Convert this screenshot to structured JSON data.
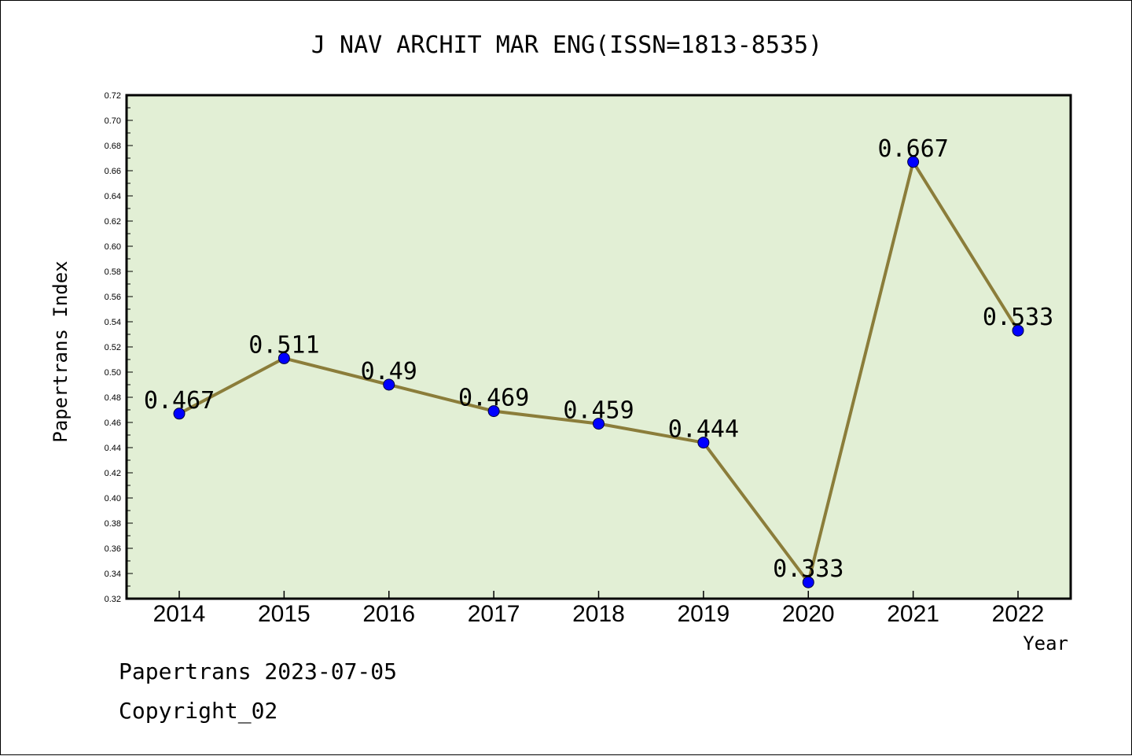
{
  "footer": {
    "line1": "Papertrans 2023-07-05",
    "line2": "Copyright_02"
  },
  "colors": {
    "plot_background": "#e2efd5",
    "line": "#8b7d3a",
    "marker": "#0000ff"
  },
  "chart_data": {
    "type": "line",
    "title": "J NAV ARCHIT MAR ENG(ISSN=1813-8535)",
    "xlabel": "Year",
    "ylabel": "Papertrans Index",
    "categories": [
      "2014",
      "2015",
      "2016",
      "2017",
      "2018",
      "2019",
      "2020",
      "2021",
      "2022"
    ],
    "series": [
      {
        "values": [
          0.467,
          0.511,
          0.49,
          0.469,
          0.459,
          0.444,
          0.333,
          0.667,
          0.533
        ],
        "labels": [
          "0.467",
          "0.511",
          "0.49",
          "0.469",
          "0.459",
          "0.444",
          "0.333",
          "0.667",
          "0.533"
        ]
      }
    ],
    "ylim": [
      0.32,
      0.72
    ],
    "yticks": [
      "0.32",
      "0.34",
      "0.36",
      "0.38",
      "0.40",
      "0.42",
      "0.44",
      "0.46",
      "0.48",
      "0.50",
      "0.52",
      "0.54",
      "0.56",
      "0.58",
      "0.60",
      "0.62",
      "0.64",
      "0.66",
      "0.68",
      "0.70",
      "0.72"
    ],
    "grid": false,
    "legend": "none"
  }
}
